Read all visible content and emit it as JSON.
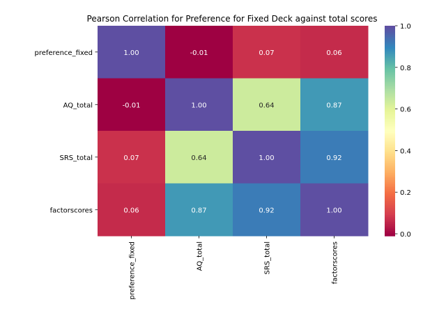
{
  "chart_data": {
    "type": "heatmap",
    "title": "Pearson Correlation for Preference for Fixed Deck against total scores",
    "rows": [
      "preference_fixed",
      "AQ_total",
      "SRS_total",
      "factorscores"
    ],
    "columns": [
      "preference_fixed",
      "AQ_total",
      "SRS_total",
      "factorscores"
    ],
    "values": [
      [
        1.0,
        -0.01,
        0.07,
        0.06
      ],
      [
        -0.01,
        1.0,
        0.64,
        0.87
      ],
      [
        0.07,
        0.64,
        1.0,
        0.92
      ],
      [
        0.06,
        0.87,
        0.92,
        1.0
      ]
    ],
    "annotations": [
      [
        "1.00",
        "-0.01",
        "0.07",
        "0.06"
      ],
      [
        "-0.01",
        "1.00",
        "0.64",
        "0.87"
      ],
      [
        "0.07",
        "0.64",
        "1.00",
        "0.92"
      ],
      [
        "0.06",
        "0.87",
        "0.92",
        "1.00"
      ]
    ],
    "colormap": "Spectral",
    "vmin": -0.01,
    "vmax": 1.0,
    "colorbar_ticks": [
      "0.0",
      "0.2",
      "0.4",
      "0.6",
      "0.8",
      "1.0"
    ],
    "colorbar_tick_values": [
      0.0,
      0.2,
      0.4,
      0.6,
      0.8,
      1.0
    ],
    "grid": false
  }
}
